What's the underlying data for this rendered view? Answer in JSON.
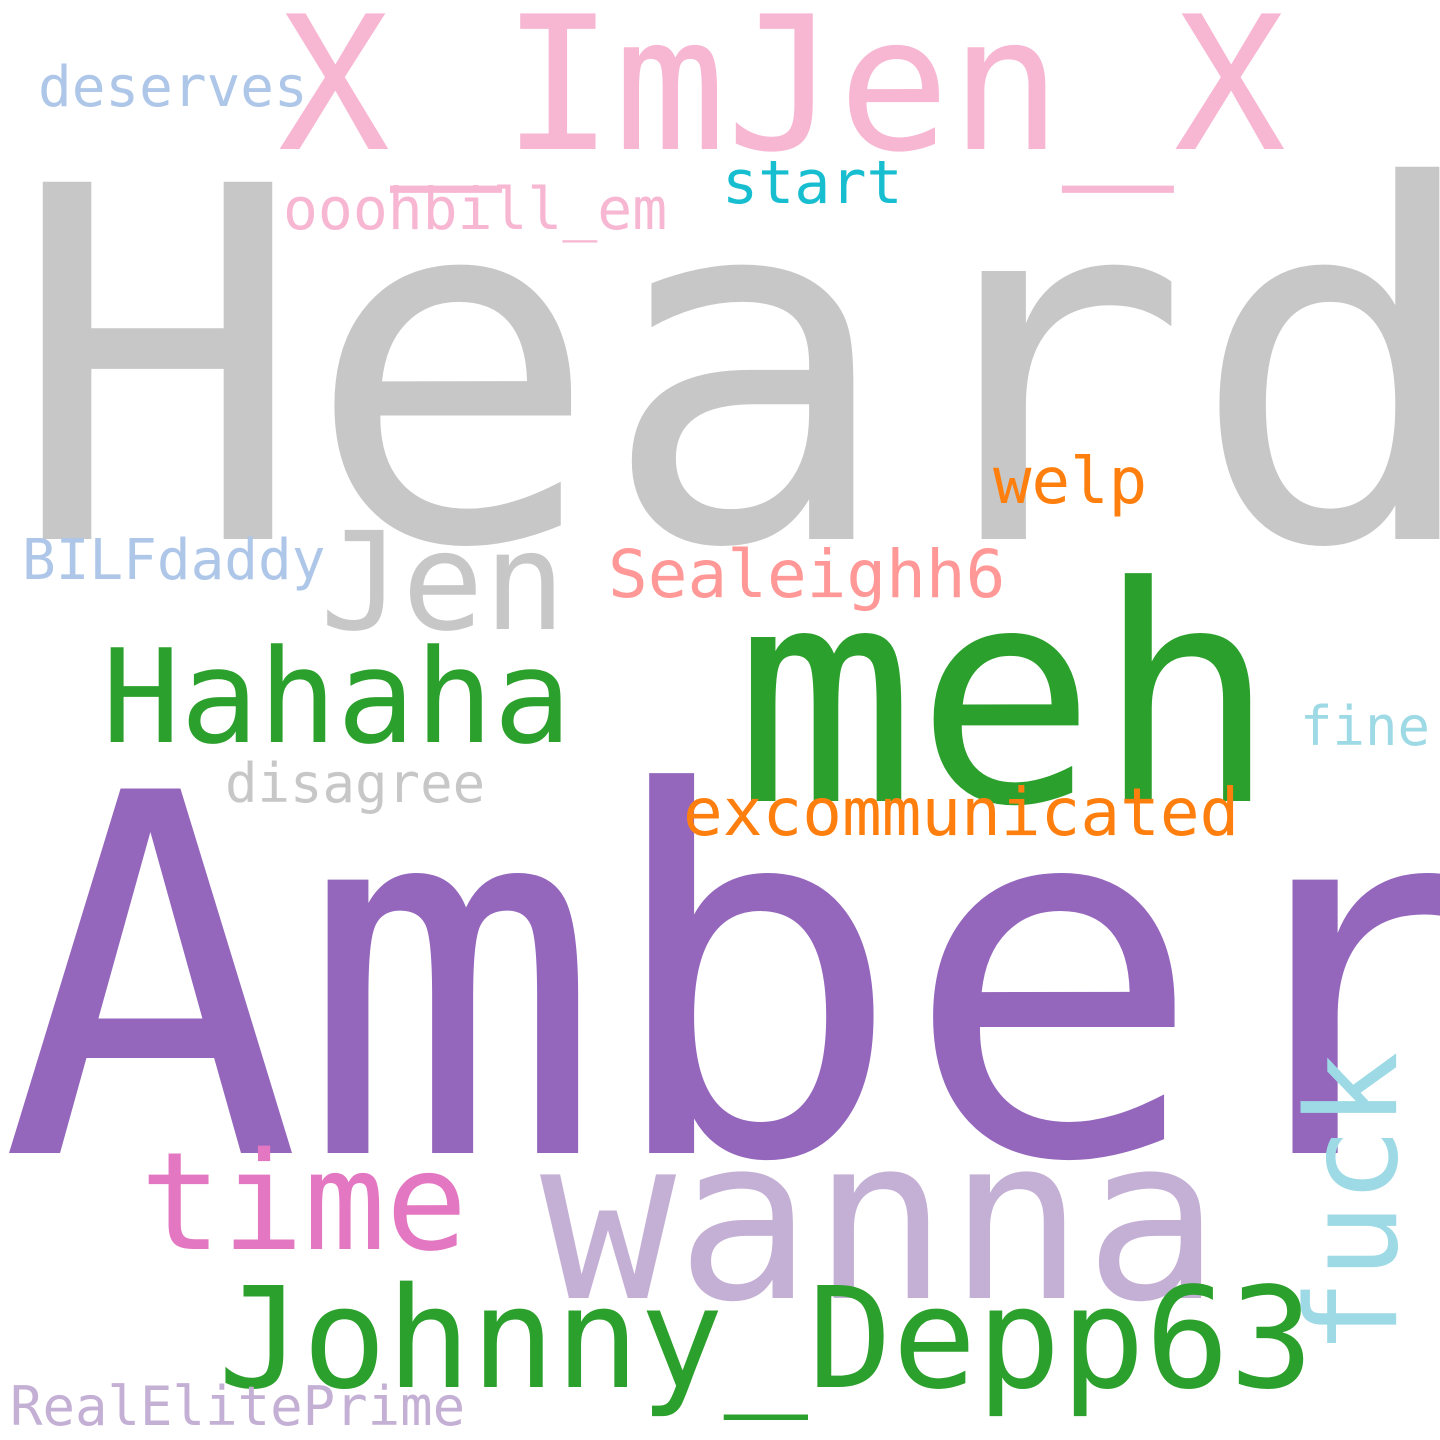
{
  "words": [
    {
      "text": "Heard",
      "color": "#c7c7c7"
    },
    {
      "text": "Amber",
      "color": "#9467bd"
    },
    {
      "text": "X_ImJen_X",
      "color": "#f7b6d2"
    },
    {
      "text": "meh",
      "color": "#2ca02c"
    },
    {
      "text": "wanna",
      "color": "#c5b0d5"
    },
    {
      "text": "Johnny_Depp63",
      "color": "#2ca02c"
    },
    {
      "text": "Hahaha",
      "color": "#2ca02c"
    },
    {
      "text": "time",
      "color": "#e377c2"
    },
    {
      "text": "Jen",
      "color": "#c7c7c7"
    },
    {
      "text": "fuck",
      "color": "#9edae5"
    },
    {
      "text": "excommunicated",
      "color": "#ff7f0e"
    },
    {
      "text": "Sealeighh6",
      "color": "#ff9896"
    },
    {
      "text": "welp",
      "color": "#ff7f0e"
    },
    {
      "text": "start",
      "color": "#17becf"
    },
    {
      "text": "ooohbill_em",
      "color": "#f7b6d2"
    },
    {
      "text": "deserves",
      "color": "#aec7e8"
    },
    {
      "text": "BILFdaddy",
      "color": "#aec7e8"
    },
    {
      "text": "disagree",
      "color": "#c7c7c7"
    },
    {
      "text": "fine",
      "color": "#9edae5"
    },
    {
      "text": "RealElitePrime",
      "color": "#c5b0d5"
    }
  ]
}
